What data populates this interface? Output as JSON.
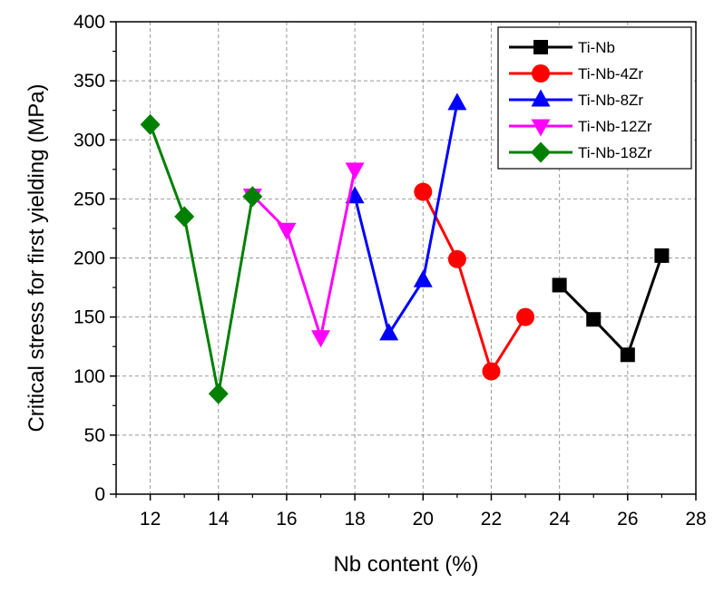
{
  "chart_data": {
    "type": "line",
    "xlabel": "Nb content (%)",
    "ylabel": "Critical stress  for first yielding (MPa)",
    "xlim": [
      11,
      28
    ],
    "ylim": [
      0,
      400
    ],
    "xticks": [
      12,
      14,
      16,
      18,
      20,
      22,
      24,
      26,
      28
    ],
    "yticks": [
      0,
      50,
      100,
      150,
      200,
      250,
      300,
      350,
      400
    ],
    "grid": true,
    "legend_position": "top-right",
    "series": [
      {
        "name": "Ti-Nb",
        "color": "#000000",
        "marker": "square",
        "x": [
          24,
          25,
          26,
          27
        ],
        "y": [
          177,
          148,
          118,
          202
        ]
      },
      {
        "name": "Ti-Nb-4Zr",
        "color": "#ff0000",
        "marker": "circle",
        "x": [
          20,
          21,
          22,
          23
        ],
        "y": [
          256,
          199,
          104,
          150
        ]
      },
      {
        "name": "Ti-Nb-8Zr",
        "color": "#0000ff",
        "marker": "triangle-up",
        "x": [
          18,
          19,
          20,
          21
        ],
        "y": [
          252,
          136,
          181,
          331
        ]
      },
      {
        "name": "Ti-Nb-12Zr",
        "color": "#ff00ff",
        "marker": "triangle-down",
        "x": [
          15,
          16,
          17,
          18
        ],
        "y": [
          253,
          224,
          133,
          275
        ]
      },
      {
        "name": "Ti-Nb-18Zr",
        "color": "#008000",
        "marker": "diamond",
        "x": [
          12,
          13,
          14,
          15
        ],
        "y": [
          313,
          235,
          85,
          252
        ]
      }
    ]
  }
}
